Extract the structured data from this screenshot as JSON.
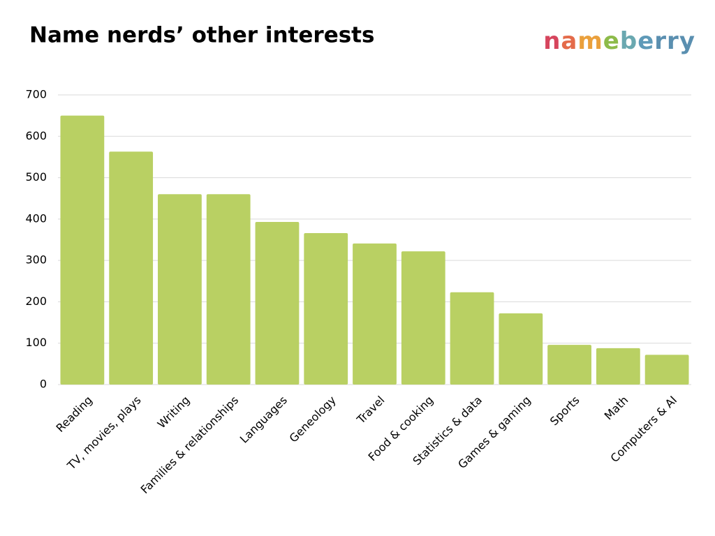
{
  "chart_data": {
    "type": "bar",
    "title": "Name nerds’ other interests",
    "logo": "nameberry",
    "categories": [
      "Reading",
      "TV, movies, plays",
      "Writing",
      "Families & relationships",
      "Languages",
      "Geneology",
      "Travel",
      "Food & cooking",
      "Statistics & data",
      "Games & gaming",
      "Sports",
      "Math",
      "Computers & AI"
    ],
    "values": [
      650,
      563,
      460,
      460,
      393,
      366,
      341,
      322,
      223,
      172,
      96,
      88,
      72
    ],
    "color": "#b9d063",
    "ylim": [
      0,
      700
    ],
    "yticks": [
      0,
      100,
      200,
      300,
      400,
      500,
      600,
      700
    ],
    "grid": true
  }
}
